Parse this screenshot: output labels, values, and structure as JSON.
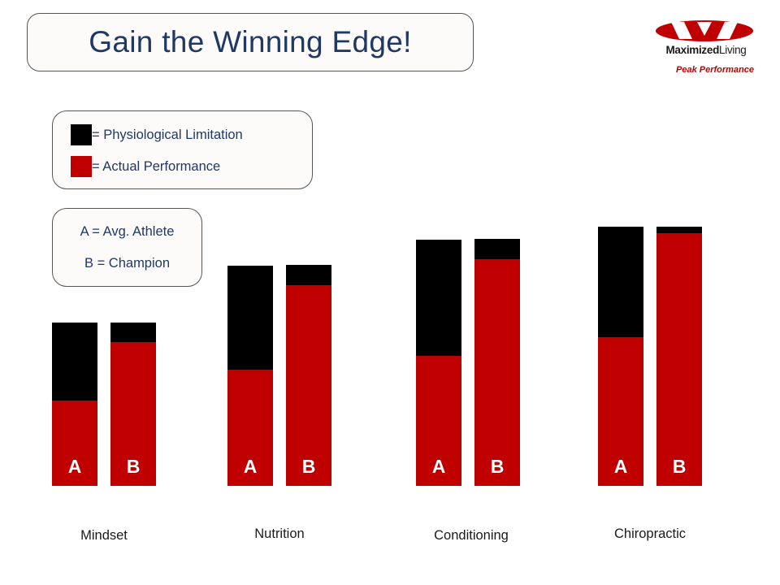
{
  "title": "Gain the Winning Edge!",
  "logo": {
    "brand_bold": "Maximized",
    "brand_regular": "Living",
    "tagline": "Peak Performance",
    "color": "#c00000"
  },
  "legend": {
    "items": [
      {
        "label": "= Physiological Limitation",
        "color": "#000000"
      },
      {
        "label": "= Actual Performance",
        "color": "#c00000"
      }
    ]
  },
  "key": {
    "line1": "A = Avg. Athlete",
    "line2": "B = Champion"
  },
  "colors": {
    "limitation": "#000000",
    "performance": "#c00000",
    "text": "#1f3864"
  },
  "chart_data": {
    "type": "bar",
    "stacked": true,
    "grid": false,
    "categories": [
      "Mindset",
      "Nutrition",
      "Conditioning",
      "Chiropractic"
    ],
    "bar_labels": [
      "A",
      "B"
    ],
    "series": [
      {
        "name": "= Actual Performance",
        "color": "#c00000",
        "values": {
          "A": [
            105,
            143,
            160,
            183
          ],
          "B": [
            177,
            247,
            279,
            311
          ]
        }
      },
      {
        "name": "= Physiological Limitation",
        "color": "#000000",
        "values": {
          "A": [
            96,
            128,
            143,
            136
          ],
          "B": [
            24,
            25,
            25,
            8
          ]
        }
      }
    ]
  }
}
